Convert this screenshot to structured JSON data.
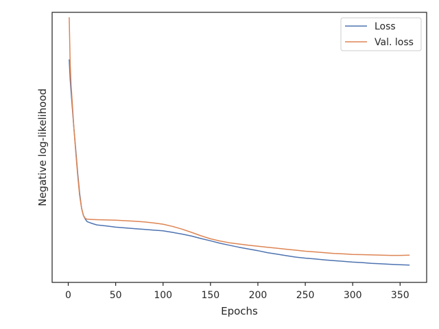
{
  "chart_data": {
    "type": "line",
    "title": "",
    "xlabel": "Epochs",
    "ylabel": "Negative log-likelihood",
    "xlim": [
      -17,
      378
    ],
    "ylim": [
      -0.03,
      1.06
    ],
    "x_ticks": [
      0,
      50,
      100,
      150,
      200,
      250,
      300,
      350
    ],
    "y_ticks_visible": false,
    "grid": false,
    "legend_position": "top-right",
    "colors": {
      "loss": "#4c72b0",
      "val_loss": "#dd8452",
      "axes": "#262626"
    },
    "series": [
      {
        "name": "Loss",
        "color": "#4c72b0",
        "x": [
          1,
          2,
          3,
          4,
          5,
          6,
          8,
          10,
          12,
          14,
          16,
          18,
          20,
          25,
          30,
          40,
          50,
          60,
          70,
          80,
          90,
          100,
          110,
          120,
          130,
          140,
          150,
          160,
          170,
          180,
          190,
          200,
          210,
          220,
          230,
          240,
          250,
          260,
          270,
          280,
          290,
          300,
          310,
          320,
          330,
          340,
          350,
          360
        ],
        "y": [
          0.87,
          0.79,
          0.74,
          0.69,
          0.64,
          0.59,
          0.5,
          0.41,
          0.33,
          0.27,
          0.24,
          0.225,
          0.215,
          0.208,
          0.202,
          0.198,
          0.193,
          0.19,
          0.187,
          0.184,
          0.181,
          0.178,
          0.172,
          0.165,
          0.157,
          0.147,
          0.138,
          0.128,
          0.12,
          0.112,
          0.105,
          0.098,
          0.09,
          0.084,
          0.078,
          0.072,
          0.068,
          0.065,
          0.061,
          0.058,
          0.055,
          0.052,
          0.05,
          0.047,
          0.045,
          0.043,
          0.041,
          0.04
        ]
      },
      {
        "name": "Val. loss",
        "color": "#dd8452",
        "x": [
          1,
          2,
          3,
          4,
          5,
          6,
          8,
          10,
          12,
          14,
          16,
          18,
          20,
          25,
          30,
          40,
          50,
          60,
          70,
          80,
          90,
          100,
          110,
          120,
          130,
          140,
          150,
          160,
          170,
          180,
          190,
          200,
          210,
          220,
          230,
          240,
          250,
          260,
          270,
          280,
          290,
          300,
          310,
          320,
          330,
          340,
          350,
          360
        ],
        "y": [
          1.04,
          0.85,
          0.77,
          0.71,
          0.65,
          0.59,
          0.49,
          0.4,
          0.32,
          0.27,
          0.24,
          0.228,
          0.225,
          0.224,
          0.223,
          0.222,
          0.221,
          0.219,
          0.217,
          0.214,
          0.21,
          0.205,
          0.196,
          0.185,
          0.172,
          0.158,
          0.146,
          0.137,
          0.13,
          0.125,
          0.12,
          0.116,
          0.112,
          0.108,
          0.104,
          0.1,
          0.096,
          0.093,
          0.09,
          0.087,
          0.085,
          0.083,
          0.082,
          0.081,
          0.08,
          0.079,
          0.079,
          0.08
        ]
      }
    ]
  }
}
